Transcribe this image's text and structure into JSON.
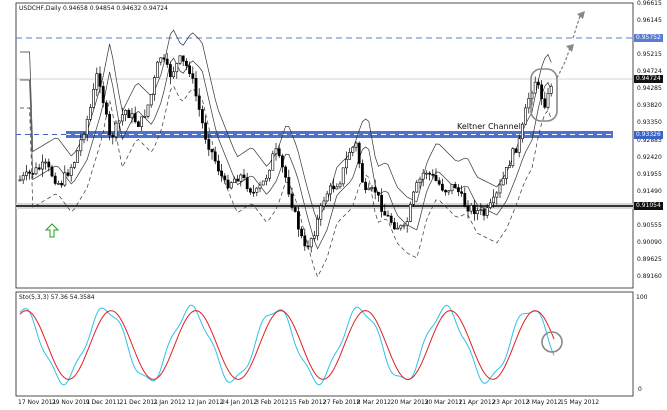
{
  "header": {
    "symbol_info": "USDCHF,Daily  0.94658 0.94854 0.94632 0.94724"
  },
  "price_axis": {
    "ticks": [
      "0.96615",
      "0.96145",
      "0.95680",
      "0.95215",
      "0.94724",
      "0.94285",
      "0.93820",
      "0.93350",
      "0.92885",
      "0.92420",
      "0.91955",
      "0.91490",
      "0.91054",
      "0.90555",
      "0.90090",
      "0.89625",
      "0.89160"
    ],
    "current_price": "0.94724",
    "highlighted_levels": [
      "0.95752",
      "0.93326",
      "0.91054"
    ]
  },
  "indicator": {
    "label": "Sto(5,3,3) 57.36 54.3584",
    "axis_top": "100",
    "axis_bottom": "0"
  },
  "annotations": {
    "channel_label": "Keltner Channel"
  },
  "date_axis": {
    "labels": [
      "17 Nov 2011",
      "29 Nov 2011",
      "9 Dec 2011",
      "21 Dec 2011",
      "2 Jan 2012",
      "12 Jan 2012",
      "24 Jan 2012",
      "3 Feb 2012",
      "15 Feb 2012",
      "27 Feb 2012",
      "8 Mar 2012",
      "20 Mar 2012",
      "30 Mar 2012",
      "11 Apr 2012",
      "23 Apr 2012",
      "3 May 2012",
      "15 May 2012"
    ]
  },
  "colors": {
    "background": "#ffffff",
    "resistance_band": "#3a63c8",
    "stoch_main": "#31c0e8",
    "stoch_signal": "#e02020",
    "dashed_level": "#5b7bd5"
  }
}
